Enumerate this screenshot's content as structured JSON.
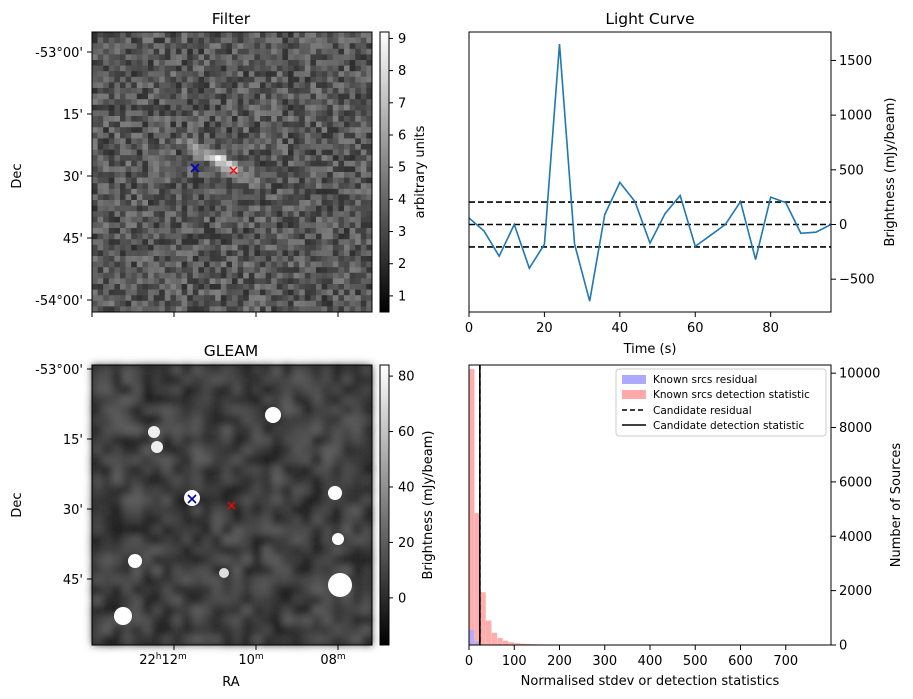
{
  "panels": {
    "filter": {
      "title": "Filter",
      "ylabel": "Dec",
      "yticks": [
        "-53°00'",
        "15'",
        "30'",
        "45'",
        "-54°00'"
      ],
      "colorbar": {
        "label": "arbitrary units",
        "ticks": [
          "1",
          "2",
          "3",
          "4",
          "5",
          "6",
          "7",
          "8",
          "9"
        ],
        "range": [
          0.5,
          9.2
        ]
      },
      "markers": [
        {
          "name": "candidate-blue",
          "symbol": "×",
          "color": "#0000cc"
        },
        {
          "name": "candidate-red",
          "symbol": "×",
          "color": "#ff0000"
        }
      ]
    },
    "gleam": {
      "title": "GLEAM",
      "xlabel": "RA",
      "ylabel": "Dec",
      "yticks": [
        "-53°00'",
        "15'",
        "30'",
        "45'"
      ],
      "xticks": [
        {
          "main": "22",
          "sup1": "h",
          "mid": "12",
          "sup2": "m"
        },
        {
          "main": "10",
          "sup1": "",
          "mid": "",
          "sup2": "m"
        },
        {
          "main": "08",
          "sup1": "",
          "mid": "",
          "sup2": "m"
        }
      ],
      "colorbar": {
        "label": "Brightness (mJy/beam)",
        "ticks": [
          "0",
          "20",
          "40",
          "60",
          "80"
        ],
        "range": [
          -17,
          84
        ]
      }
    }
  },
  "chart_data": [
    {
      "type": "line",
      "title": "Light Curve",
      "xlabel": "Time (s)",
      "ylabel": "Brightness (mJy/beam)",
      "xlim": [
        0,
        96
      ],
      "ylim": [
        -800,
        1760
      ],
      "xticks": [
        0,
        20,
        40,
        60,
        80
      ],
      "yticks": [
        -500,
        0,
        500,
        1000,
        1500
      ],
      "x": [
        0,
        4,
        8,
        12,
        16,
        20,
        24,
        28,
        32,
        36,
        40,
        44,
        48,
        52,
        56,
        60,
        64,
        68,
        72,
        76,
        80,
        84,
        88,
        92,
        96
      ],
      "y": [
        60,
        -60,
        -290,
        0,
        -400,
        -180,
        1650,
        -180,
        -700,
        90,
        385,
        210,
        -170,
        100,
        265,
        -200,
        -100,
        0,
        210,
        -320,
        250,
        200,
        -80,
        -70,
        0
      ],
      "color": "#1f77b4",
      "hlines": [
        {
          "y": 205,
          "style": "dashed"
        },
        {
          "y": 0,
          "style": "dashed"
        },
        {
          "y": -205,
          "style": "dashed"
        }
      ]
    },
    {
      "type": "bar",
      "xlabel": "Normalised stdev or detection statistics",
      "ylabel": "Number of Sources",
      "xlim": [
        0,
        800
      ],
      "ylim": [
        0,
        10300
      ],
      "xticks": [
        0,
        100,
        200,
        300,
        400,
        500,
        600,
        700
      ],
      "yticks": [
        0,
        2000,
        4000,
        6000,
        8000,
        10000
      ],
      "bin_width": 12.5,
      "series": [
        {
          "name": "Known srcs residual",
          "color": "#aaaaff",
          "bin_starts": [
            0,
            12.5
          ],
          "values": [
            550,
            120
          ]
        },
        {
          "name": "Known srcs detection statistic",
          "color": "#ffaaaa",
          "bin_starts": [
            0,
            12.5,
            25,
            37.5,
            50,
            62.5,
            75,
            87.5,
            100,
            112.5,
            125,
            137.5,
            150,
            162.5,
            175,
            187.5,
            200,
            212.5,
            225,
            250,
            275,
            300,
            325,
            350,
            375,
            400,
            425,
            450,
            475,
            500,
            550,
            600,
            650,
            700,
            750
          ],
          "values": [
            10150,
            4850,
            1940,
            900,
            450,
            260,
            160,
            100,
            70,
            50,
            40,
            30,
            25,
            20,
            18,
            15,
            12,
            10,
            8,
            7,
            6,
            5,
            5,
            4,
            4,
            4,
            3,
            3,
            3,
            3,
            2,
            2,
            2,
            2,
            20
          ]
        }
      ],
      "vlines": [
        {
          "name": "Candidate residual",
          "x": 24,
          "style": "dashed"
        },
        {
          "name": "Candidate detection statistic",
          "x": 24,
          "style": "solid"
        }
      ],
      "legend_position": "top-right"
    }
  ]
}
